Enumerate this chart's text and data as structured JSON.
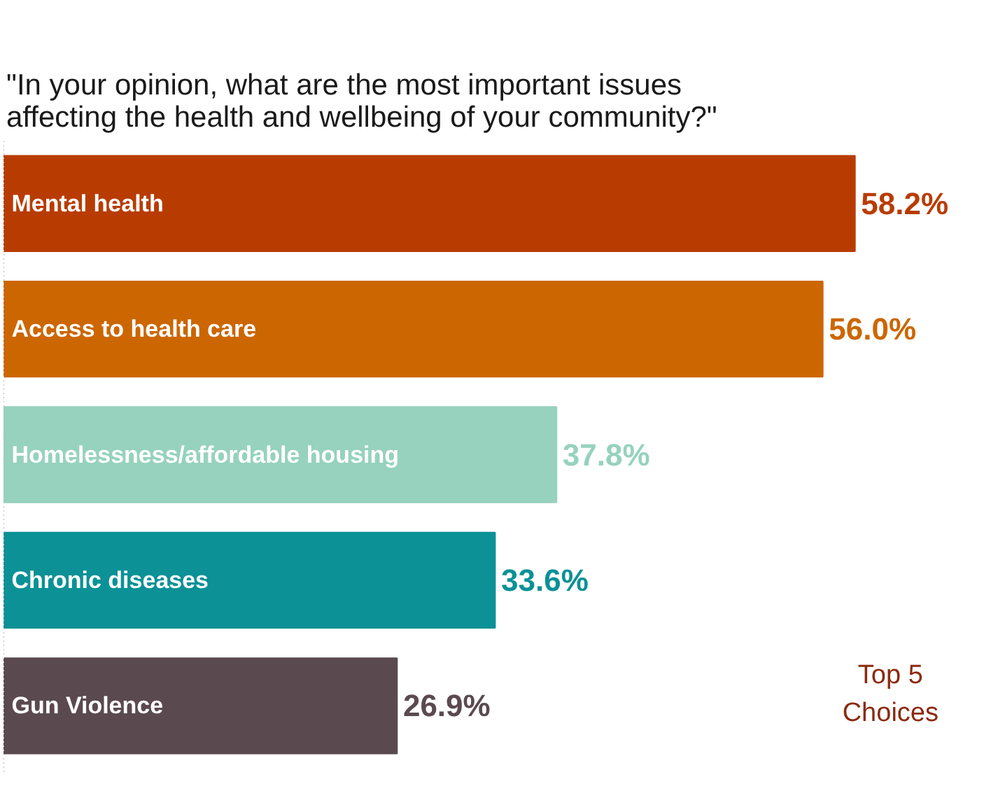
{
  "chart_data": {
    "type": "bar",
    "orientation": "horizontal",
    "title": "\"In your opinion, what are the most important issues affecting the health and wellbeing of your community?\"",
    "categories": [
      "Mental health",
      "Access to health care",
      "Homelessness/affordable housing",
      "Chronic diseases",
      "Gun Violence"
    ],
    "values": [
      58.2,
      56.0,
      37.8,
      33.6,
      26.9
    ],
    "colors": [
      "#b83c02",
      "#cc6600",
      "#96d2bd",
      "#0b9196",
      "#5a4a50"
    ],
    "value_labels": [
      "58.2%",
      "56.0%",
      "37.8%",
      "33.6%",
      "26.9%"
    ],
    "annotations": [
      "Top 5 Choices"
    ]
  }
}
